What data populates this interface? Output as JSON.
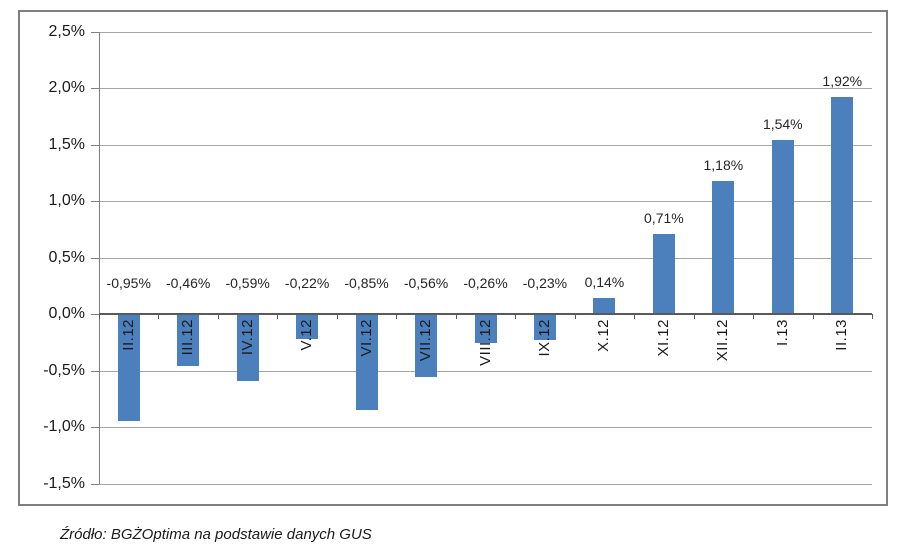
{
  "chart_data": {
    "type": "bar",
    "title": "",
    "xlabel": "",
    "ylabel": "",
    "categories": [
      "II.12",
      "III.12",
      "IV.12",
      "V.12",
      "VI.12",
      "VII.12",
      "VIII.12",
      "IX.12",
      "X.12",
      "XI.12",
      "XII.12",
      "I.13",
      "II.13"
    ],
    "values": [
      -0.95,
      -0.46,
      -0.59,
      -0.22,
      -0.85,
      -0.56,
      -0.26,
      -0.23,
      0.14,
      0.71,
      1.18,
      1.54,
      1.92
    ],
    "value_labels": [
      "-0,95%",
      "-0,46%",
      "-0,59%",
      "-0,22%",
      "-0,85%",
      "-0,56%",
      "-0,26%",
      "-0,23%",
      "0,14%",
      "0,71%",
      "1,18%",
      "1,54%",
      "1,92%"
    ],
    "ylim": [
      -1.5,
      2.5
    ],
    "ytick_values": [
      2.5,
      2.0,
      1.5,
      1.0,
      0.5,
      0.0,
      -0.5,
      -1.0,
      -1.5
    ],
    "ytick_labels": [
      "2,5%",
      "2,0%",
      "1,5%",
      "1,0%",
      "0,5%",
      "0,0%",
      "-0,5%",
      "-1,0%",
      "-1,5%"
    ],
    "grid": "horizontal",
    "legend": "none",
    "bar_color": "#4c80bd",
    "gridline_color": "#a6a6a6"
  },
  "source_note": "Źródło: BGŻOptima na podstawie danych GUS"
}
